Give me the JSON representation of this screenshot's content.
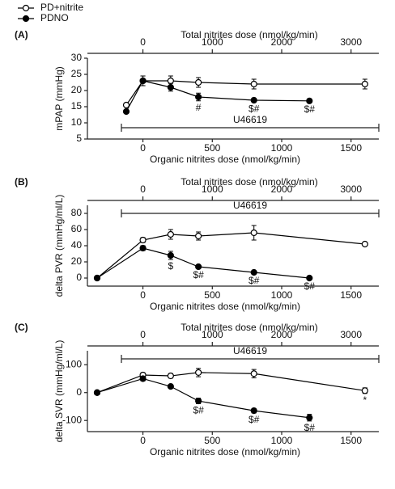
{
  "chart_data": [
    {
      "type": "line",
      "label": "(A)",
      "x2label": "Total nitrites dose (nmol/kg/min)",
      "x2lim": [
        -800,
        3400
      ],
      "x2ticks": [
        0,
        1000,
        2000,
        3000
      ],
      "xlabel": "Organic nitrites dose (nmol/kg/min)",
      "xlim": [
        -400,
        1700
      ],
      "xticks": [
        0,
        500,
        1000,
        1500
      ],
      "ylabel": "mPAP (mmHg)",
      "ylim": [
        5,
        30
      ],
      "yticks": [
        5,
        10,
        15,
        20,
        25,
        30
      ],
      "annotation": "U46619",
      "annotation_position": "bottom",
      "series": [
        {
          "name": "PD+nitrite",
          "color": "#000000",
          "marker": "open",
          "x": [
            -120,
            0,
            200,
            400,
            800,
            1600
          ],
          "values": [
            15.5,
            23,
            23,
            22.5,
            22,
            22
          ],
          "errors": [
            0.5,
            1.5,
            1.5,
            1.5,
            1.5,
            1.5
          ],
          "labels": [
            null,
            null,
            null,
            null,
            null,
            null
          ]
        },
        {
          "name": "PDNO",
          "color": "#000000",
          "marker": "filled",
          "x": [
            -120,
            0,
            200,
            400,
            800,
            1200
          ],
          "values": [
            13.5,
            23,
            21,
            18,
            17,
            16.8
          ],
          "errors": [
            0.5,
            1.5,
            1.2,
            1.2,
            0.6,
            0.5
          ],
          "labels": [
            null,
            null,
            null,
            "#",
            "$#",
            "$#"
          ]
        }
      ]
    },
    {
      "type": "line",
      "label": "(B)",
      "x2label": "Total nitrites dose (nmol/kg/min)",
      "x2lim": [
        -800,
        3400
      ],
      "x2ticks": [
        0,
        1000,
        2000,
        3000
      ],
      "xlabel": "Organic nitrites dose (nmol/kg/min)",
      "xlim": [
        -400,
        1700
      ],
      "xticks": [
        0,
        500,
        1000,
        1500
      ],
      "ylabel": "delta PVR (mmHg/ml/L)",
      "ylim": [
        -10,
        90
      ],
      "yticks": [
        0,
        20,
        40,
        60,
        80
      ],
      "annotation": "U46619",
      "annotation_position": "top",
      "series": [
        {
          "color": "#000000",
          "marker": "open",
          "x": [
            -330,
            0,
            200,
            400,
            800,
            1600
          ],
          "values": [
            0,
            47,
            54,
            52,
            56,
            42
          ],
          "errors": [
            0,
            3,
            6,
            5,
            9,
            2
          ],
          "labels": [
            null,
            null,
            null,
            null,
            null,
            null
          ]
        },
        {
          "color": "#000000",
          "marker": "filled",
          "x": [
            -330,
            0,
            200,
            400,
            800,
            1200
          ],
          "values": [
            0,
            37,
            28,
            14,
            7,
            0
          ],
          "errors": [
            0,
            3,
            5,
            2,
            2,
            2
          ],
          "labels": [
            null,
            null,
            "$",
            "$#",
            "$#",
            "$#"
          ]
        }
      ]
    },
    {
      "type": "line",
      "label": "(C)",
      "x2label": "Total nitrites dose (nmol/kg/min)",
      "x2lim": [
        -800,
        3400
      ],
      "x2ticks": [
        0,
        1000,
        2000,
        3000
      ],
      "xlabel": "Organic nitrites dose (nmol/kg/min)",
      "xlim": [
        -400,
        1700
      ],
      "xticks": [
        0,
        500,
        1000,
        1500
      ],
      "ylabel": "delta SVR (mmHg/ml/L)",
      "ylim": [
        -140,
        150
      ],
      "yticks": [
        -100,
        0,
        100
      ],
      "annotation": "U46619",
      "annotation_position": "top",
      "series": [
        {
          "color": "#000000",
          "marker": "open",
          "x": [
            -330,
            0,
            200,
            400,
            800,
            1600
          ],
          "values": [
            0,
            63,
            60,
            72,
            68,
            7
          ],
          "errors": [
            0,
            8,
            8,
            15,
            15,
            10
          ],
          "labels": [
            null,
            null,
            null,
            null,
            null,
            "*"
          ]
        },
        {
          "color": "#000000",
          "marker": "filled",
          "x": [
            -330,
            0,
            200,
            400,
            800,
            1200
          ],
          "values": [
            0,
            50,
            22,
            -30,
            -65,
            -90
          ],
          "errors": [
            0,
            8,
            5,
            10,
            8,
            12
          ],
          "labels": [
            null,
            null,
            null,
            "$#",
            "$#",
            "$#"
          ]
        }
      ]
    }
  ]
}
